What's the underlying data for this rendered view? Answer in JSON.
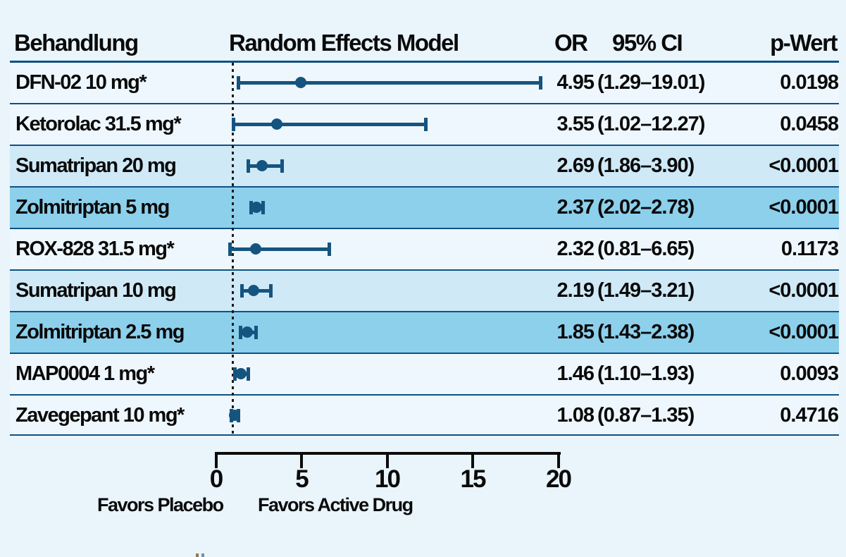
{
  "chart_data": {
    "type": "scatter",
    "subtype": "forest_plot",
    "columns": {
      "treatment": "Behandlung",
      "model": "Random Effects Model",
      "or": "OR",
      "ci": "95% CI",
      "p": "p-Wert"
    },
    "x_axis": {
      "range": [
        0,
        20
      ],
      "ticks": [
        0,
        5,
        10,
        15,
        20
      ],
      "reference_line": 1,
      "footer_left": "Favors Placebo",
      "footer_right": "Favors Active Drug"
    },
    "rows": [
      {
        "label": "DFN-02 10 mg*",
        "or": 4.95,
        "ci_low": 1.29,
        "ci_high": 19.01,
        "or_text": "4.95",
        "ci_text": "(1.29–19.01)",
        "p_text": "0.0198",
        "shade": "pale"
      },
      {
        "label": "Ketorolac 31.5 mg*",
        "or": 3.55,
        "ci_low": 1.02,
        "ci_high": 12.27,
        "or_text": "3.55",
        "ci_text": "(1.02–12.27)",
        "p_text": "0.0458",
        "shade": "pale"
      },
      {
        "label": "Sumatripan 20 mg",
        "or": 2.69,
        "ci_low": 1.86,
        "ci_high": 3.9,
        "or_text": "2.69",
        "ci_text": "(1.86–3.90)",
        "p_text": "<0.0001",
        "shade": "light"
      },
      {
        "label": "Zolmitriptan 5 mg",
        "or": 2.37,
        "ci_low": 2.02,
        "ci_high": 2.78,
        "or_text": "2.37",
        "ci_text": "(2.02–2.78)",
        "p_text": "<0.0001",
        "shade": "mid"
      },
      {
        "label": "ROX-828 31.5 mg*",
        "or": 2.32,
        "ci_low": 0.81,
        "ci_high": 6.65,
        "or_text": "2.32",
        "ci_text": "(0.81–6.65)",
        "p_text": "0.1173",
        "shade": "pale"
      },
      {
        "label": "Sumatripan 10 mg",
        "or": 2.19,
        "ci_low": 1.49,
        "ci_high": 3.21,
        "or_text": "2.19",
        "ci_text": "(1.49–3.21)",
        "p_text": "<0.0001",
        "shade": "light"
      },
      {
        "label": "Zolmitriptan 2.5 mg",
        "or": 1.85,
        "ci_low": 1.43,
        "ci_high": 2.38,
        "or_text": "1.85",
        "ci_text": "(1.43–2.38)",
        "p_text": "<0.0001",
        "shade": "mid"
      },
      {
        "label": "MAP0004 1 mg*",
        "or": 1.46,
        "ci_low": 1.1,
        "ci_high": 1.93,
        "or_text": "1.46",
        "ci_text": "(1.10–1.93)",
        "p_text": "0.0093",
        "shade": "pale"
      },
      {
        "label": "Zavegepant 10 mg*",
        "or": 1.08,
        "ci_low": 0.87,
        "ci_high": 1.35,
        "or_text": "1.08",
        "ci_text": "(0.87–1.35)",
        "p_text": "0.4716",
        "shade": "pale"
      }
    ]
  },
  "colors": {
    "background": "#e9f4fb",
    "row_pale": "#eef7fd",
    "row_light": "#cfe9f7",
    "row_mid": "#8dd0ec",
    "marker_navy": "#15547f",
    "separator_blue": "#0d5284",
    "axis_black": "#0b0b0b",
    "text_black": "#0a0a0a"
  }
}
